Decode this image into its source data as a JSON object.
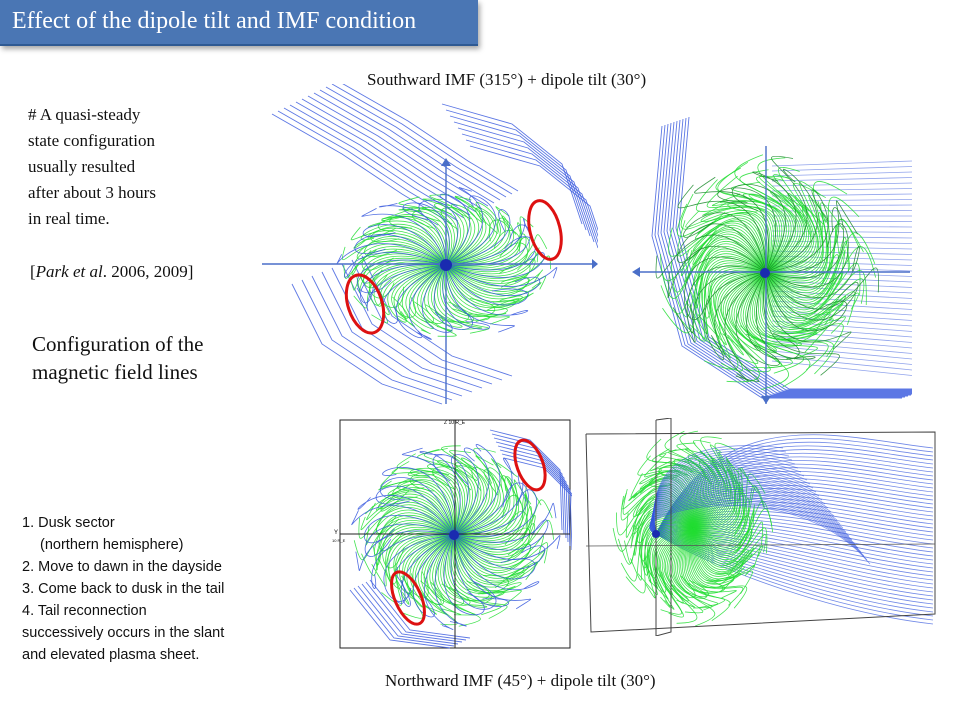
{
  "header": {
    "title": "Effect of the dipole tilt and IMF condition"
  },
  "captions": {
    "southward": "Southward IMF  (315°) + dipole tilt (30°)",
    "northward": "Northward IMF (45°) + dipole tilt (30°)"
  },
  "note": {
    "lines": [
      "# A quasi-steady",
      "state configuration",
      "usually resulted",
      "after about 3 hours",
      "in real time."
    ]
  },
  "citation": {
    "prefix": "[",
    "authors": "Park et al",
    "rest": ". 2006, 2009]"
  },
  "subtitle": {
    "lines": [
      "Configuration of the",
      "magnetic field lines"
    ]
  },
  "list": {
    "items": [
      "1. Dusk sector",
      "    (northern hemisphere)",
      "2. Move to dawn in the dayside",
      "3. Come back to dusk in the tail",
      "4.  Tail reconnection",
      "successively occurs in the slant",
      "and elevated plasma sheet."
    ]
  },
  "plot_labels": {
    "z_axis": "Z  10 R_E",
    "y_axis": "Y",
    "y_unit": "10 R_E"
  },
  "colors": {
    "title_bg": "#4a76b4",
    "field_green": "#22dd33",
    "field_blue": "#3355dd",
    "ellipse": "#dd1111"
  }
}
